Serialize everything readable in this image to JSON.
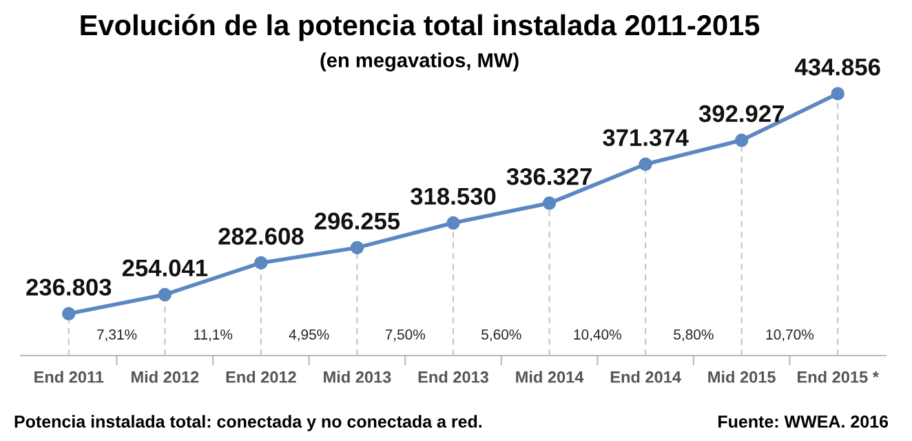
{
  "chart_data": {
    "type": "line",
    "title": "Evolución de la potencia total instalada 2011-2015",
    "subtitle": "(en megavatios, MW)",
    "categories": [
      "End 2011",
      "Mid 2012",
      "End 2012",
      "Mid 2013",
      "End 2013",
      "Mid 2014",
      "End 2014",
      "Mid 2015",
      "End 2015 *"
    ],
    "series": [
      {
        "color": "#5b87c2",
        "values": [
          236803,
          254041,
          282608,
          296255,
          318530,
          336327,
          371374,
          392927,
          434856
        ],
        "value_labels": [
          "236.803",
          "254.041",
          "282.608",
          "296.255",
          "318.530",
          "336.327",
          "371.374",
          "392.927",
          "434.856"
        ]
      }
    ],
    "marker": "circle",
    "line_style": "solid",
    "grid": "x",
    "legend": false,
    "annotations": [
      "7,31%",
      "11,1%",
      "4,95%",
      "7,50%",
      "5,60%",
      "10,40%",
      "5,80%",
      "10,70%",
      "Potencia instalada total: conectada y no conectada a red.",
      "Fuente: WWEA. 2016"
    ]
  }
}
